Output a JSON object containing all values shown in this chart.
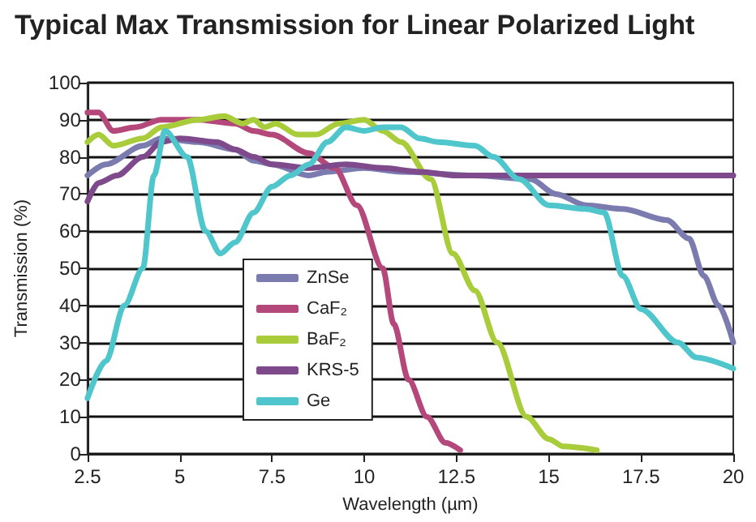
{
  "chart_data": {
    "type": "line",
    "title": "Typical Max Transmission for Linear Polarized Light",
    "xlabel": "Wavelength (µm)",
    "ylabel": "Transmission (%)",
    "xlim": [
      2.5,
      20
    ],
    "xticks": [
      2.5,
      5,
      7.5,
      10,
      12.5,
      15,
      17.5,
      20
    ],
    "ylim": [
      0,
      100
    ],
    "yticks": [
      0,
      10,
      20,
      30,
      40,
      50,
      60,
      70,
      80,
      90,
      100
    ],
    "grid": "y",
    "legend": "bottom left",
    "marker": "none",
    "line_style": "solid",
    "series": [
      {
        "name": "ZnSe",
        "color": "#7b7bb0",
        "x": [
          2.5,
          3,
          4,
          4.5,
          5.5,
          6.5,
          7,
          7.5,
          8.5,
          9,
          10,
          11,
          13,
          14.5,
          15.2,
          16,
          17,
          18.2,
          18.8,
          19.2,
          19.6,
          20
        ],
        "values": [
          75,
          78,
          83,
          85,
          84,
          82,
          79,
          78,
          75,
          76,
          77,
          76,
          75,
          74,
          70,
          67,
          66,
          63,
          58,
          48,
          40,
          30
        ]
      },
      {
        "name": "CaF₂",
        "color": "#b5487a",
        "x": [
          2.5,
          2.8,
          3.2,
          3.8,
          4.5,
          5.5,
          6.5,
          7,
          7.5,
          8.5,
          9.2,
          9.8,
          10.5,
          10.8,
          11.2,
          11.7,
          12.2,
          12.6
        ],
        "values": [
          92,
          92,
          87,
          88,
          90,
          90,
          89,
          87,
          86,
          81,
          77,
          67,
          50,
          35,
          20,
          10,
          3,
          1
        ]
      },
      {
        "name": "BaF₂",
        "color": "#a8cc3a",
        "x": [
          2.5,
          2.8,
          3.2,
          4,
          4.5,
          5.5,
          6.2,
          6.7,
          7,
          7.3,
          7.6,
          8.2,
          8.7,
          9.3,
          10,
          10.5,
          11,
          11.8,
          12.4,
          13,
          13.6,
          14.4,
          15,
          15.4,
          16.3
        ],
        "values": [
          84,
          86,
          83,
          85,
          88,
          90,
          91,
          89,
          90,
          88,
          89,
          86,
          86,
          89,
          90,
          87,
          84,
          74,
          54,
          44,
          30,
          10,
          4,
          2,
          1
        ]
      },
      {
        "name": "KRS-5",
        "color": "#7e4a8c",
        "x": [
          2.5,
          2.8,
          3.3,
          4,
          4.5,
          5,
          6,
          6.5,
          7,
          7.5,
          8.5,
          9.5,
          10.5,
          11.5,
          12.5,
          20
        ],
        "values": [
          68,
          73,
          75,
          80,
          84,
          85,
          84,
          82,
          80,
          78,
          77,
          78,
          77,
          76,
          75,
          75
        ]
      },
      {
        "name": "Ge",
        "color": "#4fc6cc",
        "x": [
          2.5,
          3,
          3.5,
          4,
          4.3,
          4.6,
          5.2,
          5.7,
          6.1,
          6.5,
          7,
          7.5,
          8,
          8.5,
          9,
          9.5,
          10,
          10.5,
          11,
          11.5,
          12,
          13,
          13.5,
          14.2,
          15,
          16,
          16.5,
          17,
          17.5,
          18.5,
          19,
          20
        ],
        "values": [
          15,
          25,
          40,
          50,
          75,
          87,
          80,
          60,
          54,
          57,
          65,
          72,
          75,
          78,
          84,
          88,
          87,
          88,
          88,
          85,
          84,
          83,
          80,
          74,
          67,
          66,
          65,
          48,
          39,
          30,
          26,
          23
        ]
      }
    ]
  }
}
